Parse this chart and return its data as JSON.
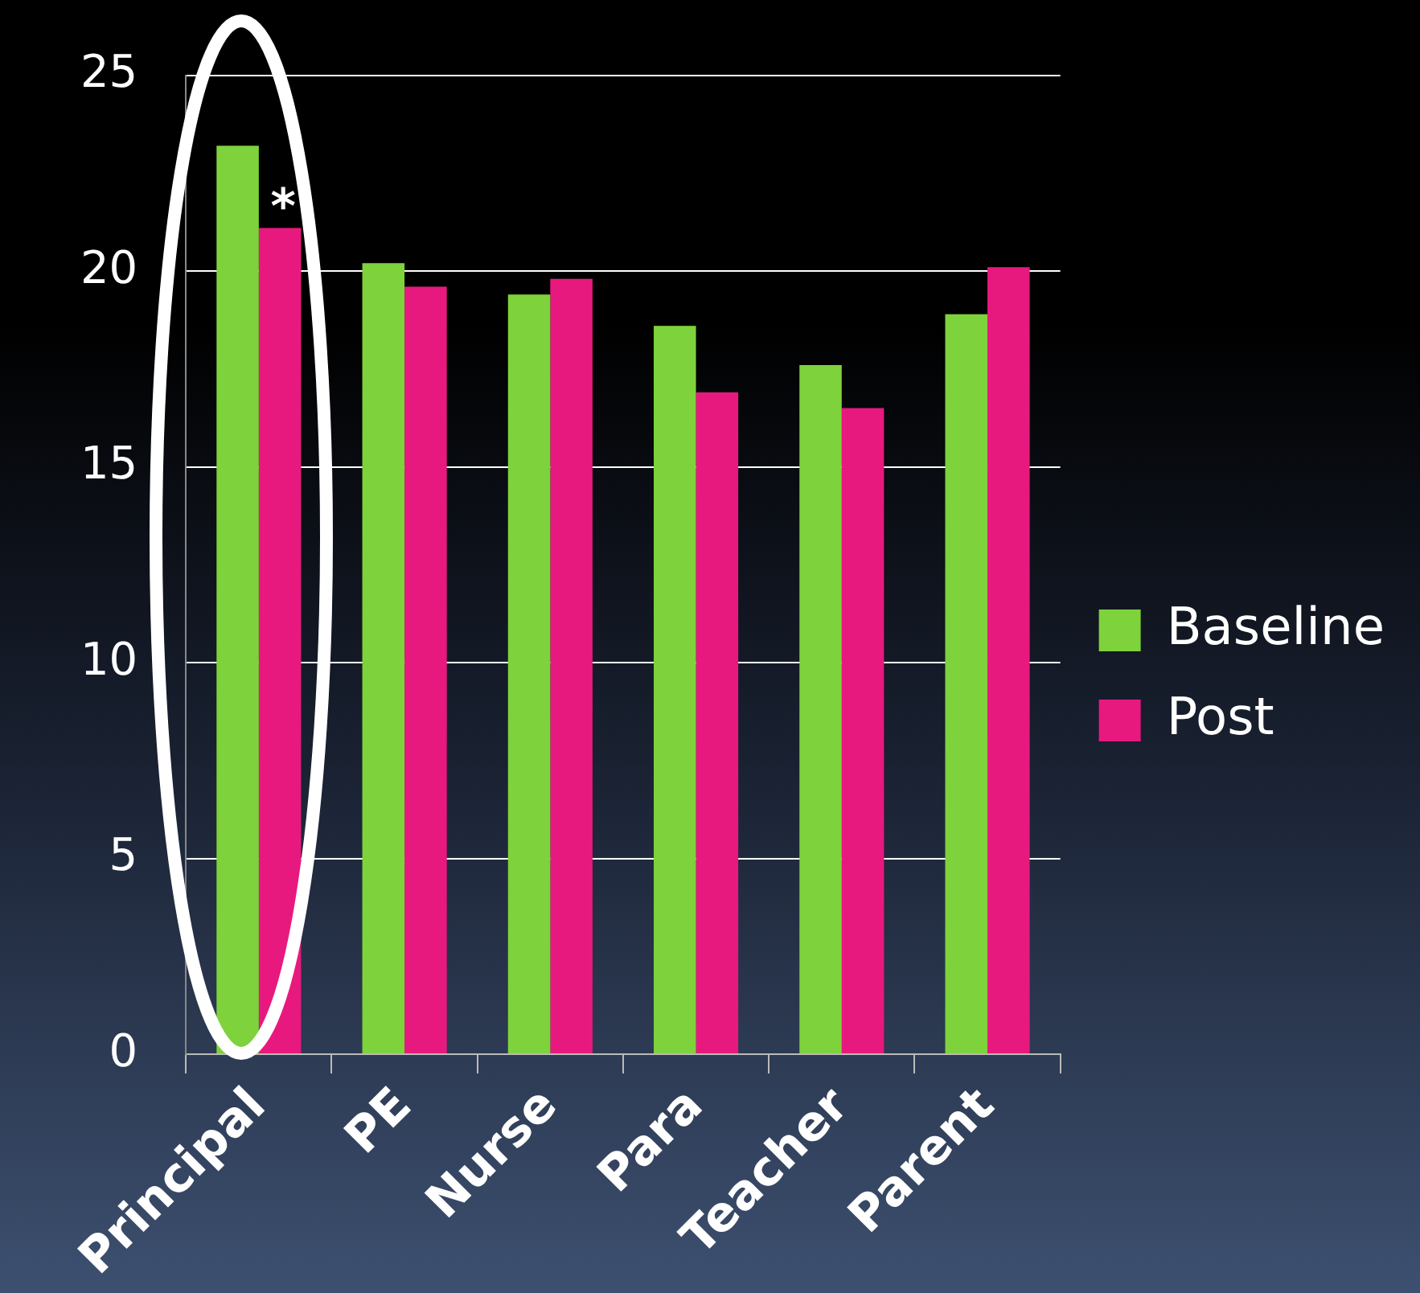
{
  "chart_data": {
    "type": "bar",
    "categories": [
      "Principal",
      "PE",
      "Nurse",
      "Para",
      "Teacher",
      "Parent"
    ],
    "series": [
      {
        "name": "Baseline",
        "color": "#7ed23b",
        "values": [
          23.2,
          20.2,
          19.4,
          18.6,
          17.6,
          18.9
        ]
      },
      {
        "name": "Post",
        "color": "#e8197e",
        "values": [
          21.1,
          19.6,
          19.8,
          16.9,
          16.5,
          20.1
        ]
      }
    ],
    "ylim": [
      0,
      25
    ],
    "yticks": [
      0,
      5,
      10,
      15,
      20,
      25
    ],
    "grid": "y",
    "legend": "right",
    "annotations": [
      {
        "text": "*",
        "x": "Principal",
        "y": 21.1
      }
    ]
  }
}
